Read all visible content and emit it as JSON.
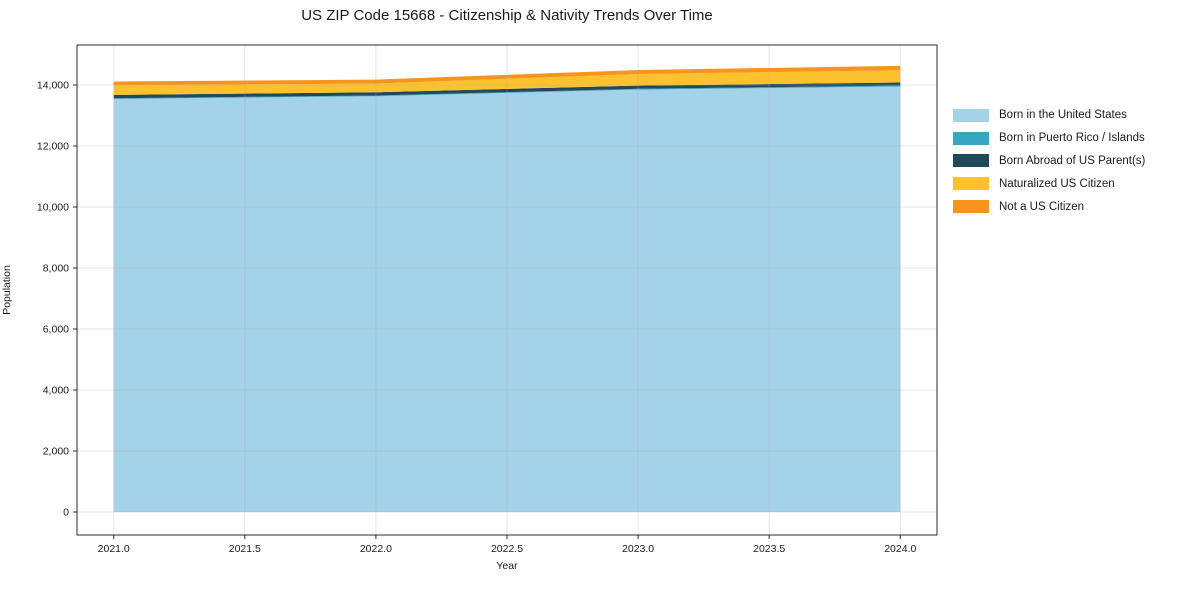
{
  "title": "US ZIP Code 15668 - Citizenship & Nativity Trends Over Time",
  "chart_data": {
    "type": "area",
    "stacked": true,
    "title": "US ZIP Code 15668 - Citizenship & Nativity Trends Over Time",
    "xlabel": "Year",
    "ylabel": "Population",
    "x": [
      2021,
      2022,
      2023,
      2024
    ],
    "series": [
      {
        "name": "Born in the United States",
        "color": "#a4d2e8",
        "values": [
          13540,
          13630,
          13850,
          13950
        ]
      },
      {
        "name": "Born in Puerto Rico / Islands",
        "color": "#39a6c0",
        "values": [
          25,
          25,
          25,
          30
        ]
      },
      {
        "name": "Born Abroad of US Parent(s)",
        "color": "#21495c",
        "values": [
          110,
          105,
          105,
          100
        ]
      },
      {
        "name": "Naturalized US Citizen",
        "color": "#fcc22d",
        "values": [
          310,
          285,
          380,
          405
        ]
      },
      {
        "name": "Not a US Citizen",
        "color": "#f7941e",
        "values": [
          130,
          130,
          130,
          140
        ]
      }
    ],
    "x_tick_values": [
      2021.0,
      2021.5,
      2022.0,
      2022.5,
      2023.0,
      2023.5,
      2024.0
    ],
    "x_tick_labels": [
      "2021.0",
      "2021.5",
      "2022.0",
      "2022.5",
      "2023.0",
      "2023.5",
      "2024.0"
    ],
    "y_tick_values": [
      0,
      2000,
      4000,
      6000,
      8000,
      10000,
      12000,
      14000
    ],
    "y_tick_labels": [
      "0",
      "2,000",
      "4,000",
      "6,000",
      "8,000",
      "10,000",
      "12,000",
      "14,000"
    ],
    "xlim": [
      2020.86,
      2024.14
    ],
    "ylim": [
      -754,
      15311
    ],
    "grid": true,
    "legend_position": "right",
    "colors": {
      "grid": "rgba(170,170,170,0.30)",
      "spine": "#2b2b2b",
      "tick_text": "#1a1a1a",
      "background": "#ffffff"
    }
  }
}
